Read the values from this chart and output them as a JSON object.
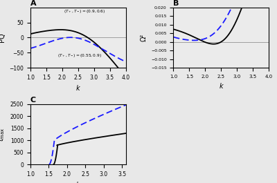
{
  "panel_A": {
    "title": "A",
    "xlabel": "k",
    "ylabel": "PQ",
    "xlim": [
      1.0,
      4.0
    ],
    "ylim": [
      -100,
      100
    ],
    "yticks": [
      -100,
      -50,
      0,
      50
    ],
    "xticks": [
      1.0,
      1.5,
      2.0,
      2.5,
      3.0,
      3.5,
      4.0
    ],
    "label1": "(T₁,T₋)=(0.9,0.6)",
    "label2": "(T₁,T₋)=(0.55,0.9)"
  },
  "panel_B": {
    "title": "B",
    "xlabel": "k",
    "ylabel": "Ω²",
    "xlim": [
      1.0,
      4.0
    ],
    "ylim": [
      -0.015,
      0.02
    ],
    "yticks": [
      -0.015,
      -0.01,
      -0.005,
      0.0,
      0.005,
      0.01,
      0.015,
      0.02
    ],
    "xticks": [
      1.0,
      1.5,
      2.0,
      2.5,
      3.0,
      3.5,
      4.0
    ]
  },
  "panel_C": {
    "title": "C",
    "xlabel": "k",
    "ylabel": "t_max",
    "xlim": [
      1.0,
      3.6
    ],
    "ylim": [
      0,
      2500
    ],
    "yticks": [
      0,
      500,
      1000,
      1500,
      2000,
      2500
    ],
    "xticks": [
      1.0,
      1.5,
      2.0,
      2.5,
      3.0,
      3.5
    ]
  },
  "bg_color": "#f0f0f0",
  "solid_color": "#000000",
  "dashed_color": "#1a1aff",
  "line_width": 1.3
}
